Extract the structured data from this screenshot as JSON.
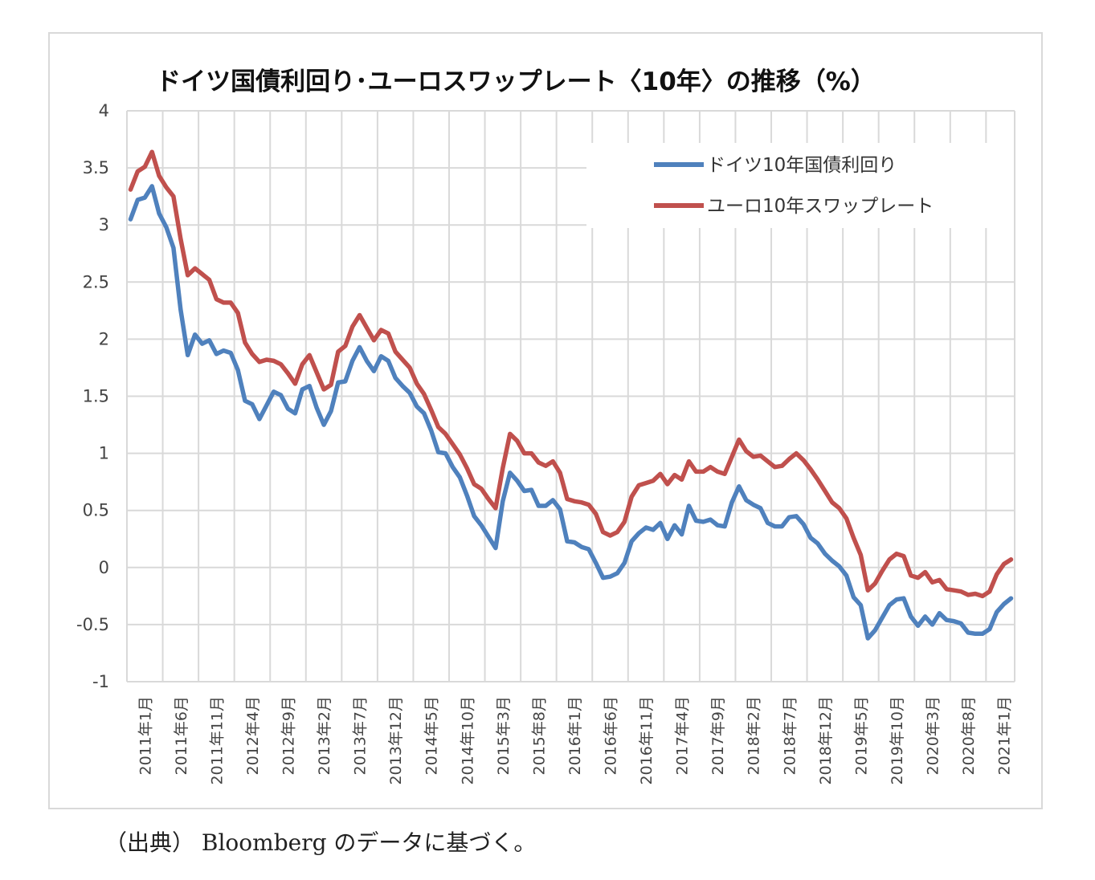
{
  "chart_data": {
    "type": "line",
    "title": "ドイツ国債利回り･ユーロスワップレート〈10年〉の推移（%）",
    "xlabel": "",
    "ylabel": "",
    "ylim": [
      -1,
      4
    ],
    "yticks": [
      "4",
      "3.5",
      "3",
      "2.5",
      "2",
      "1.5",
      "1",
      "0.5",
      "0",
      "-0.5",
      "-1"
    ],
    "grid": true,
    "legend_position": "top-right",
    "x_tick_labels": [
      "2011年1月",
      "2011年6月",
      "2011年11月",
      "2012年4月",
      "2012年9月",
      "2013年2月",
      "2013年7月",
      "2013年12月",
      "2014年5月",
      "2014年10月",
      "2015年3月",
      "2015年8月",
      "2016年1月",
      "2016年6月",
      "2016年11月",
      "2017年4月",
      "2017年9月",
      "2018年2月",
      "2018年7月",
      "2018年12月",
      "2019年5月",
      "2019年10月",
      "2020年3月",
      "2020年8月",
      "2021年1月"
    ],
    "x_start": "2011-01",
    "x_end": "2021-06",
    "series": [
      {
        "name": "ドイツ10年国債利回り",
        "color": "#4f81bd",
        "values": [
          3.05,
          3.22,
          3.24,
          3.34,
          3.1,
          2.98,
          2.8,
          2.26,
          1.86,
          2.04,
          1.96,
          1.99,
          1.87,
          1.9,
          1.88,
          1.73,
          1.46,
          1.43,
          1.3,
          1.42,
          1.54,
          1.51,
          1.39,
          1.35,
          1.56,
          1.59,
          1.4,
          1.25,
          1.37,
          1.62,
          1.63,
          1.81,
          1.93,
          1.81,
          1.72,
          1.85,
          1.81,
          1.66,
          1.59,
          1.53,
          1.41,
          1.35,
          1.2,
          1.01,
          1.0,
          0.88,
          0.79,
          0.63,
          0.45,
          0.37,
          0.27,
          0.17,
          0.58,
          0.83,
          0.76,
          0.67,
          0.68,
          0.54,
          0.54,
          0.59,
          0.51,
          0.23,
          0.22,
          0.18,
          0.16,
          0.04,
          -0.09,
          -0.08,
          -0.05,
          0.04,
          0.23,
          0.3,
          0.35,
          0.33,
          0.39,
          0.25,
          0.37,
          0.29,
          0.54,
          0.41,
          0.4,
          0.42,
          0.37,
          0.36,
          0.57,
          0.71,
          0.59,
          0.55,
          0.52,
          0.39,
          0.36,
          0.36,
          0.44,
          0.45,
          0.38,
          0.26,
          0.21,
          0.12,
          0.06,
          0.01,
          -0.07,
          -0.26,
          -0.33,
          -0.62,
          -0.55,
          -0.44,
          -0.33,
          -0.28,
          -0.27,
          -0.43,
          -0.51,
          -0.43,
          -0.5,
          -0.4,
          -0.46,
          -0.47,
          -0.49,
          -0.57,
          -0.58,
          -0.58,
          -0.54,
          -0.39,
          -0.32,
          -0.27
        ]
      },
      {
        "name": "ユーロ10年スワップレート",
        "color": "#c0504d",
        "values": [
          3.31,
          3.47,
          3.51,
          3.64,
          3.43,
          3.33,
          3.25,
          2.88,
          2.56,
          2.62,
          2.57,
          2.52,
          2.35,
          2.32,
          2.32,
          2.23,
          1.97,
          1.87,
          1.8,
          1.82,
          1.81,
          1.78,
          1.7,
          1.61,
          1.78,
          1.86,
          1.71,
          1.56,
          1.6,
          1.89,
          1.94,
          2.11,
          2.21,
          2.1,
          1.99,
          2.08,
          2.05,
          1.89,
          1.82,
          1.75,
          1.61,
          1.52,
          1.38,
          1.23,
          1.17,
          1.08,
          0.99,
          0.87,
          0.73,
          0.69,
          0.6,
          0.52,
          0.87,
          1.17,
          1.11,
          1.0,
          1.0,
          0.92,
          0.89,
          0.93,
          0.83,
          0.6,
          0.58,
          0.57,
          0.55,
          0.47,
          0.31,
          0.28,
          0.31,
          0.4,
          0.62,
          0.72,
          0.74,
          0.76,
          0.82,
          0.73,
          0.81,
          0.77,
          0.93,
          0.84,
          0.84,
          0.88,
          0.84,
          0.82,
          0.97,
          1.12,
          1.02,
          0.97,
          0.98,
          0.93,
          0.88,
          0.89,
          0.95,
          1.0,
          0.94,
          0.86,
          0.77,
          0.67,
          0.57,
          0.52,
          0.43,
          0.26,
          0.11,
          -0.2,
          -0.14,
          -0.03,
          0.07,
          0.12,
          0.1,
          -0.07,
          -0.09,
          -0.04,
          -0.13,
          -0.11,
          -0.19,
          -0.2,
          -0.21,
          -0.24,
          -0.23,
          -0.25,
          -0.21,
          -0.06,
          0.03,
          0.07
        ]
      }
    ]
  },
  "caption": "（出典） Bloomberg のデータに基づく。"
}
